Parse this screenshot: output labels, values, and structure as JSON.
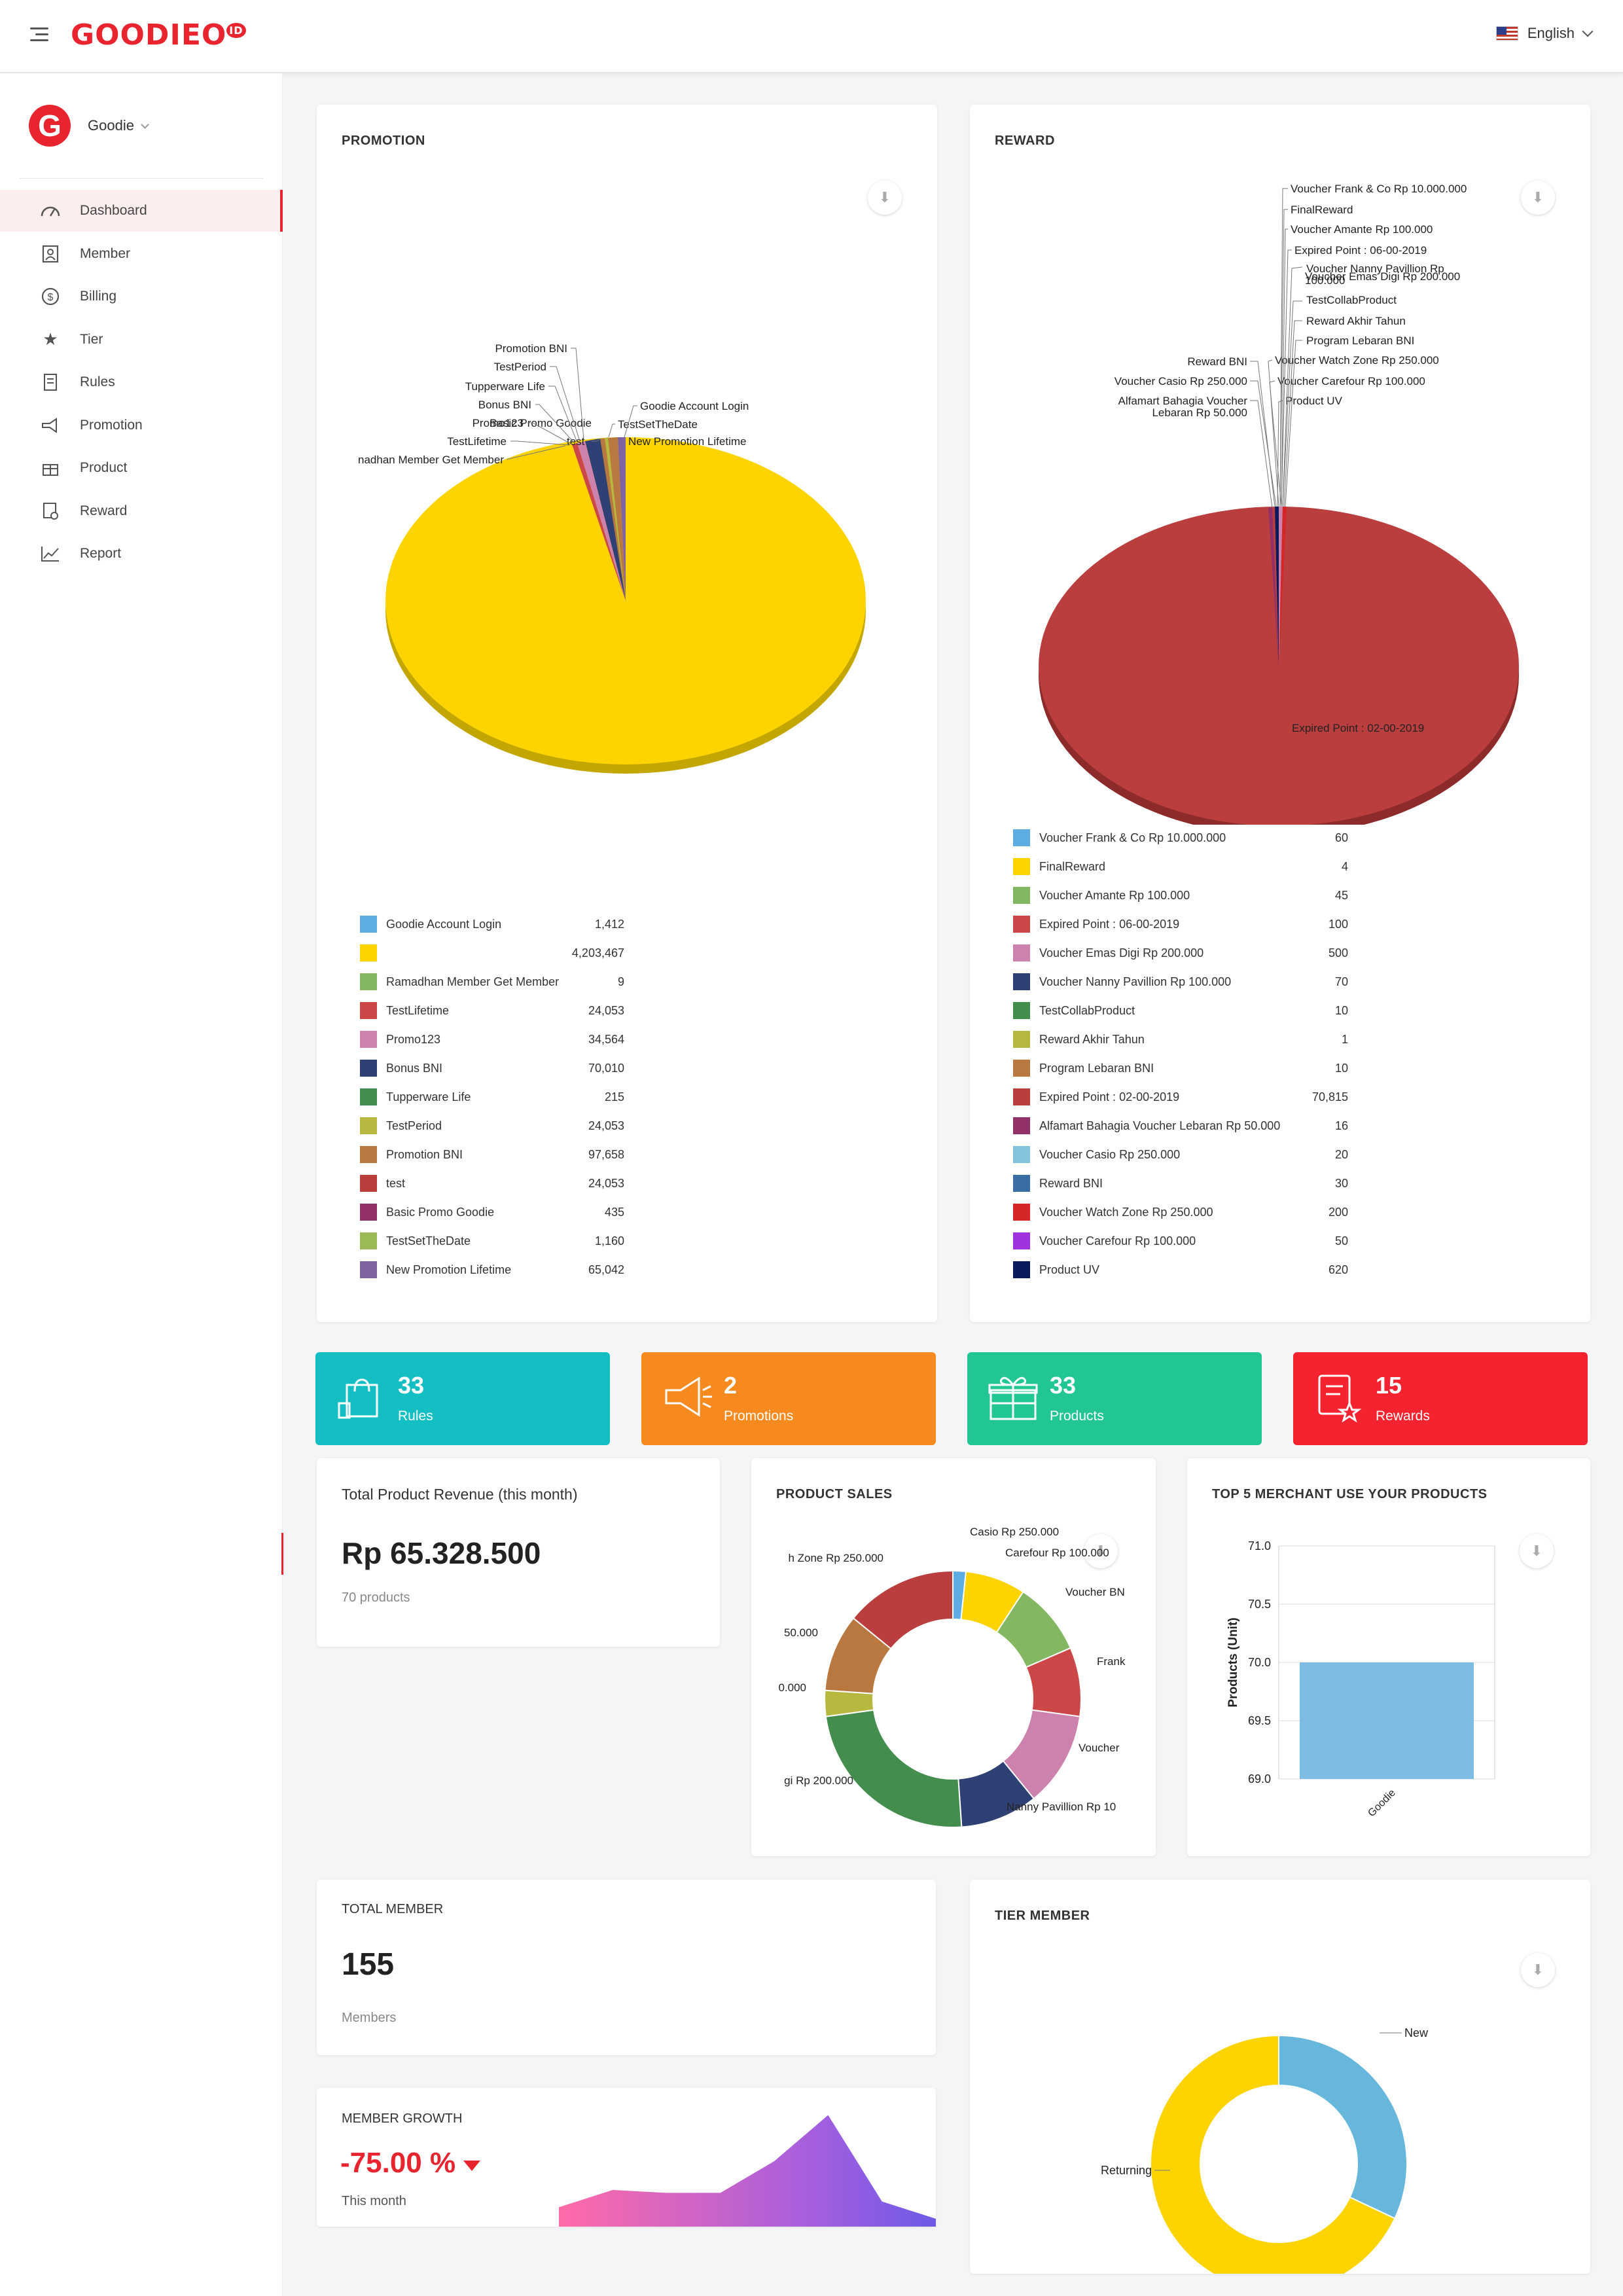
{
  "header": {
    "logo_text": "GOODIEO",
    "logo_badge": "ID",
    "language": "English"
  },
  "sidebar": {
    "brand_initial": "G",
    "brand_name": "Goodie",
    "items": [
      {
        "label": "Dashboard",
        "icon": "dashboard-icon",
        "active": true
      },
      {
        "label": "Member",
        "icon": "member-icon"
      },
      {
        "label": "Billing",
        "icon": "billing-icon"
      },
      {
        "label": "Tier",
        "icon": "star-icon"
      },
      {
        "label": "Rules",
        "icon": "rules-icon"
      },
      {
        "label": "Promotion",
        "icon": "megaphone-icon"
      },
      {
        "label": "Product",
        "icon": "gift-icon"
      },
      {
        "label": "Reward",
        "icon": "reward-icon"
      },
      {
        "label": "Report",
        "icon": "chart-line-icon"
      }
    ]
  },
  "promotion": {
    "title": "PROMOTION",
    "legend": [
      {
        "label": "Goodie Account Login",
        "value": "1,412",
        "color": "#5dade2"
      },
      {
        "label": "",
        "value": "4,203,467",
        "color": "#fdd400"
      },
      {
        "label": "Ramadhan Member Get Member",
        "value": "9",
        "color": "#84b761"
      },
      {
        "label": "TestLifetime",
        "value": "24,053",
        "color": "#cc4748"
      },
      {
        "label": "Promo123",
        "value": "34,564",
        "color": "#cd82ad"
      },
      {
        "label": "Bonus BNI",
        "value": "70,010",
        "color": "#2f4074"
      },
      {
        "label": "Tupperware Life",
        "value": "215",
        "color": "#448e4d"
      },
      {
        "label": "TestPeriod",
        "value": "24,053",
        "color": "#b7b83f"
      },
      {
        "label": "Promotion BNI",
        "value": "97,658",
        "color": "#b9783f"
      },
      {
        "label": "test",
        "value": "24,053",
        "color": "#b93e3d"
      },
      {
        "label": "Basic Promo Goodie",
        "value": "435",
        "color": "#913167"
      },
      {
        "label": "TestSetTheDate",
        "value": "1,160",
        "color": "#9bbb59"
      },
      {
        "label": "New Promotion Lifetime",
        "value": "65,042",
        "color": "#8064a2"
      }
    ],
    "pie_labels": [
      "Promotion BNI",
      "TestPeriod",
      "Tupperware Life",
      "Bonus BNI",
      "Promo123",
      "Basic Promo Goodie",
      "TestLifetime",
      "nadhan Member Get Member",
      "Goodie Account Login",
      "TestSetTheDate",
      "test",
      "New Promotion Lifetime"
    ]
  },
  "reward": {
    "title": "REWARD",
    "legend": [
      {
        "label": "Voucher Frank & Co Rp 10.000.000",
        "value": "60",
        "color": "#5dade2"
      },
      {
        "label": "FinalReward",
        "value": "4",
        "color": "#fdd400"
      },
      {
        "label": "Voucher Amante Rp 100.000",
        "value": "45",
        "color": "#84b761"
      },
      {
        "label": "Expired Point : 06-00-2019",
        "value": "100",
        "color": "#cc4748"
      },
      {
        "label": "Voucher Emas Digi Rp 200.000",
        "value": "500",
        "color": "#cd82ad"
      },
      {
        "label": "Voucher Nanny Pavillion Rp 100.000",
        "value": "70",
        "color": "#2f4074"
      },
      {
        "label": "TestCollabProduct",
        "value": "10",
        "color": "#448e4d"
      },
      {
        "label": "Reward Akhir Tahun",
        "value": "1",
        "color": "#b7b83f"
      },
      {
        "label": "Program Lebaran BNI",
        "value": "10",
        "color": "#b9783f"
      },
      {
        "label": "Expired Point : 02-00-2019",
        "value": "70,815",
        "color": "#b93e3d"
      },
      {
        "label": "Alfamart Bahagia Voucher Lebaran Rp 50.000",
        "value": "16",
        "color": "#913167"
      },
      {
        "label": "Voucher Casio Rp 250.000",
        "value": "20",
        "color": "#84c4dc"
      },
      {
        "label": "Reward BNI",
        "value": "30",
        "color": "#3a6ea5"
      },
      {
        "label": "Voucher Watch Zone Rp 250.000",
        "value": "200",
        "color": "#d62728"
      },
      {
        "label": "Voucher Carefour Rp 100.000",
        "value": "50",
        "color": "#a033dd"
      },
      {
        "label": "Product UV",
        "value": "620",
        "color": "#0a1a5c"
      }
    ],
    "pie_labels": [
      "Voucher Frank & Co Rp 10.000.000",
      "FinalReward",
      "Voucher Amante Rp 100.000",
      "Expired Point : 06-00-2019",
      "Voucher Nanny Pavillion Rp",
      "Voucher Emas Digi Rp 200.000",
      "TestCollabProduct",
      "Reward Akhir Tahun",
      "Program Lebaran BNI",
      "Reward BNI",
      "Voucher Watch Zone Rp 250.000",
      "Voucher Casio Rp 250.000",
      "Voucher Carefour Rp 100.000",
      "Alfamart Bahagia Voucher",
      "Lebaran Rp 50.000",
      "Product UV",
      "100.000",
      "Expired Point : 02-00-2019"
    ]
  },
  "tiles": [
    {
      "value": "33",
      "label": "Rules",
      "color": "#14bfc4",
      "icon": "shopping-bag-icon"
    },
    {
      "value": "2",
      "label": "Promotions",
      "color": "#f68a1f",
      "icon": "megaphone-icon"
    },
    {
      "value": "33",
      "label": "Products",
      "color": "#21c693",
      "icon": "gift-icon"
    },
    {
      "value": "15",
      "label": "Rewards",
      "color": "#f5232f",
      "icon": "reward-icon"
    }
  ],
  "revenue": {
    "title": "Total Product Revenue (this month)",
    "amount": "Rp 65.328.500",
    "sub": "70 products"
  },
  "product_sales": {
    "title": "PRODUCT SALES",
    "labels": [
      "Casio Rp 250.000",
      "Carefour Rp 100.000",
      "Voucher BN",
      "Frank",
      "Voucher",
      "Nanny Pavillion Rp 10",
      "gi Rp 200.000",
      "0.000",
      "50.000",
      "h Zone Rp 250.000"
    ]
  },
  "top_merchant": {
    "title": "TOP 5 MERCHANT USE YOUR PRODUCTS"
  },
  "total_member": {
    "title": "TOTAL MEMBER",
    "value": "155",
    "sub": "Members"
  },
  "member_growth": {
    "title": "MEMBER GROWTH",
    "value": "-75.00 %",
    "sub": "This month"
  },
  "tier_member": {
    "title": "TIER MEMBER"
  },
  "chart_data": [
    {
      "type": "pie",
      "title": "PROMOTION",
      "categories": [
        "Goodie Account Login",
        "",
        "Ramadhan Member Get Member",
        "TestLifetime",
        "Promo123",
        "Bonus BNI",
        "Tupperware Life",
        "TestPeriod",
        "Promotion BNI",
        "test",
        "Basic Promo Goodie",
        "TestSetTheDate",
        "New Promotion Lifetime"
      ],
      "values": [
        1412,
        4203467,
        9,
        24053,
        34564,
        70010,
        215,
        24053,
        97658,
        24053,
        435,
        1160,
        65042
      ]
    },
    {
      "type": "pie",
      "title": "REWARD",
      "categories": [
        "Voucher Frank & Co Rp 10.000.000",
        "FinalReward",
        "Voucher Amante Rp 100.000",
        "Expired Point : 06-00-2019",
        "Voucher Emas Digi Rp 200.000",
        "Voucher Nanny Pavillion Rp 100.000",
        "TestCollabProduct",
        "Reward Akhir Tahun",
        "Program Lebaran BNI",
        "Expired Point : 02-00-2019",
        "Alfamart Bahagia Voucher Lebaran Rp 50.000",
        "Voucher Casio Rp 250.000",
        "Reward BNI",
        "Voucher Watch Zone Rp 250.000",
        "Voucher Carefour Rp 100.000",
        "Product UV"
      ],
      "values": [
        60,
        4,
        45,
        100,
        500,
        70,
        10,
        1,
        10,
        70815,
        16,
        20,
        30,
        200,
        50,
        620
      ]
    },
    {
      "type": "pie",
      "title": "PRODUCT SALES",
      "donut": true,
      "slices": [
        {
          "label": "Casio Rp 250.000",
          "value": 1.5,
          "color": "#5dade2"
        },
        {
          "label": "Carefour Rp 100.000",
          "value": 7,
          "color": "#fdd400"
        },
        {
          "label": "Voucher BN",
          "value": 8.5,
          "color": "#84b761"
        },
        {
          "label": "Frank",
          "value": 8,
          "color": "#cc4748"
        },
        {
          "label": "Voucher",
          "value": 11,
          "color": "#cd82ad"
        },
        {
          "label": "Nanny Pavillion Rp 10",
          "value": 9,
          "color": "#2f4074"
        },
        {
          "label": "gi Rp 200.000",
          "value": 22,
          "color": "#448e4d"
        },
        {
          "label": "0.000",
          "value": 3,
          "color": "#b7b83f"
        },
        {
          "label": "50.000",
          "value": 9,
          "color": "#b9783f"
        },
        {
          "label": "h Zone Rp 250.000",
          "value": 13,
          "color": "#b93e3d"
        }
      ]
    },
    {
      "type": "bar",
      "title": "TOP 5 MERCHANT USE YOUR PRODUCTS",
      "categories": [
        "Goodie"
      ],
      "values": [
        70
      ],
      "ylabel": "Products (Unit)",
      "ylim": [
        69,
        71
      ],
      "yticks": [
        "71.0",
        "70.5",
        "70.0",
        "69.5",
        "69.0"
      ],
      "color": "#7dbde3"
    },
    {
      "type": "pie",
      "title": "TIER MEMBER",
      "donut": true,
      "slices": [
        {
          "label": "New",
          "value": 32,
          "color": "#67b7dc"
        },
        {
          "label": "Returning",
          "value": 68,
          "color": "#fdd400"
        }
      ]
    },
    {
      "type": "area",
      "title": "MEMBER GROWTH",
      "values": [
        2,
        5,
        4.5,
        4.5,
        10,
        18,
        3,
        0
      ]
    }
  ]
}
